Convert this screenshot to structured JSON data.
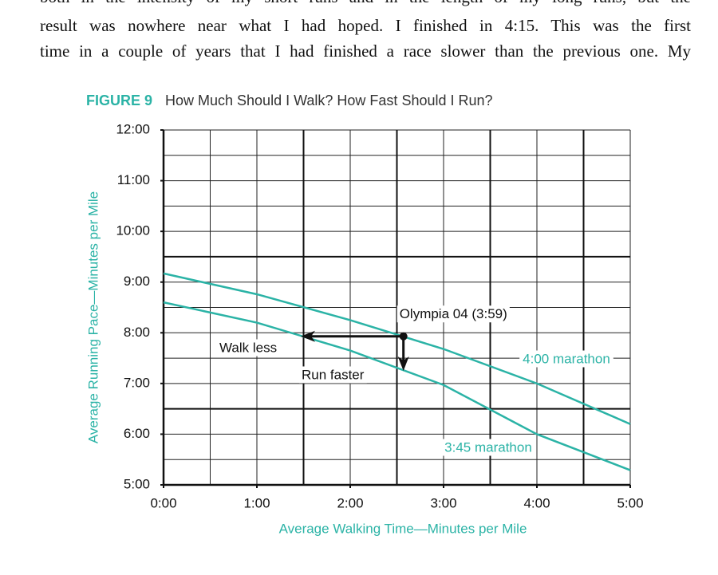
{
  "page": {
    "paragraph_lines": [
      "both in the intensity of my short runs and in the length of my long runs, but the",
      "result was nowhere near what I had hoped. I finished in 4:15. This was the first",
      "time in a couple of years that I had finished a race slower than the previous one. My"
    ],
    "figure_label": "FIGURE 9",
    "chart_data": {
      "type": "line",
      "title": "How Much Should I Walk? How Fast Should I Run?",
      "x_label": "Average Walking Time—Minutes per Mile",
      "y_label": "Average Running Pace—Minutes per Mile",
      "x": [
        0,
        1,
        2,
        3,
        4,
        5
      ],
      "series": [
        {
          "name": "4:00 marathon",
          "color": "#2bb3a6",
          "values": [
            9.17,
            8.76,
            8.25,
            7.68,
            7.0,
            6.2
          ]
        },
        {
          "name": "3:45 marathon",
          "color": "#2bb3a6",
          "values": [
            8.6,
            8.2,
            7.65,
            6.97,
            6.0,
            5.29
          ]
        }
      ],
      "xlim": [
        0,
        5
      ],
      "ylim": [
        5,
        12
      ],
      "xticks": [
        {
          "value": 0,
          "label": "0:00"
        },
        {
          "value": 1,
          "label": "1:00"
        },
        {
          "value": 2,
          "label": "2:00"
        },
        {
          "value": 3,
          "label": "3:00"
        },
        {
          "value": 4,
          "label": "4:00"
        },
        {
          "value": 5,
          "label": "5:00"
        }
      ],
      "yticks": [
        {
          "value": 5,
          "label": "5:00"
        },
        {
          "value": 6,
          "label": "6:00"
        },
        {
          "value": 7,
          "label": "7:00"
        },
        {
          "value": 8,
          "label": "8:00"
        },
        {
          "value": 9,
          "label": "9:00"
        },
        {
          "value": 10,
          "label": "10:00"
        },
        {
          "value": 11,
          "label": "11:00"
        },
        {
          "value": 12,
          "label": "12:00"
        }
      ],
      "x_gridlines": [
        0.5,
        1,
        1.5,
        2,
        2.5,
        3,
        3.5,
        4,
        4.5,
        5
      ],
      "y_gridlines": [
        5.5,
        6,
        6.5,
        7,
        7.5,
        8,
        8.5,
        9,
        9.5,
        10,
        10.5,
        11,
        11.5,
        12
      ],
      "x_heavy_gridlines": [
        1.5,
        2.5,
        3.5,
        4.5
      ],
      "y_heavy_gridlines": [
        6.5,
        9.5
      ],
      "grid": true,
      "point": {
        "label": "Olympia 04 (3:59)",
        "x": 2.57,
        "y": 7.93
      },
      "arrows": [
        {
          "label": "Walk less",
          "x_to": 1.47
        },
        {
          "label": "Run faster",
          "y_to": 7.25
        }
      ]
    }
  }
}
